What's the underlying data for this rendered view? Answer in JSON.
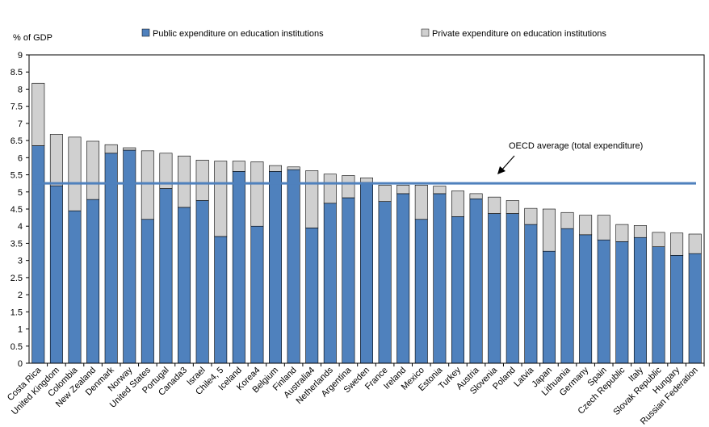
{
  "chart_data": {
    "type": "bar",
    "stacked": true,
    "ylabel": "% of GDP",
    "ylim": [
      0,
      9
    ],
    "yticks": [
      0,
      0.5,
      1,
      1.5,
      2,
      2.5,
      3,
      3.5,
      4,
      4.5,
      5,
      5.5,
      6,
      6.5,
      7,
      7.5,
      8,
      8.5,
      9
    ],
    "legend_position": "top",
    "categories": [
      "Costa Rica",
      "United Kingdom",
      "Colombia",
      "New Zealand",
      "Denmark",
      "Norway",
      "United States",
      "Portugal",
      "Canada3",
      "Israel",
      "Chile4, 5",
      "Iceland",
      "Korea4",
      "Belgium",
      "Finland",
      "Australia4",
      "Netherlands",
      "Argentina",
      "Sweden",
      "France",
      "Ireland",
      "Mexico",
      "Estonia",
      "Turkey",
      "Austria",
      "Slovenia",
      "Poland",
      "Latvia",
      "Japan",
      "Lithuania",
      "Germany",
      "Spain",
      "Czech Republic",
      "Italy",
      "Slovak Republic",
      "Hungary",
      "Russian Federation"
    ],
    "series": [
      {
        "name": "Public expenditure on education institutions",
        "color": "#4f81bd",
        "values": [
          6.35,
          5.18,
          4.45,
          4.78,
          6.13,
          6.22,
          4.2,
          5.1,
          4.55,
          4.75,
          3.7,
          5.6,
          4.0,
          5.6,
          5.65,
          3.95,
          4.67,
          4.83,
          5.28,
          4.72,
          4.95,
          4.2,
          4.95,
          4.28,
          4.8,
          4.37,
          4.37,
          4.05,
          3.27,
          3.93,
          3.75,
          3.6,
          3.55,
          3.67,
          3.4,
          3.15,
          3.2
        ]
      },
      {
        "name": "Private expenditure on education institutions",
        "color": "#d0d0d0",
        "values": [
          1.82,
          1.5,
          2.15,
          1.7,
          0.25,
          0.07,
          2.0,
          1.03,
          1.5,
          1.18,
          2.2,
          0.3,
          1.88,
          0.17,
          0.08,
          1.67,
          0.85,
          0.65,
          0.13,
          0.48,
          0.25,
          1.0,
          0.22,
          0.75,
          0.15,
          0.48,
          0.38,
          0.47,
          1.23,
          0.47,
          0.57,
          0.72,
          0.5,
          0.35,
          0.42,
          0.65,
          0.57
        ]
      }
    ],
    "reference_line": {
      "label": "OECD average (total expenditure)",
      "value": 5.25,
      "color": "#4f81bd"
    }
  }
}
